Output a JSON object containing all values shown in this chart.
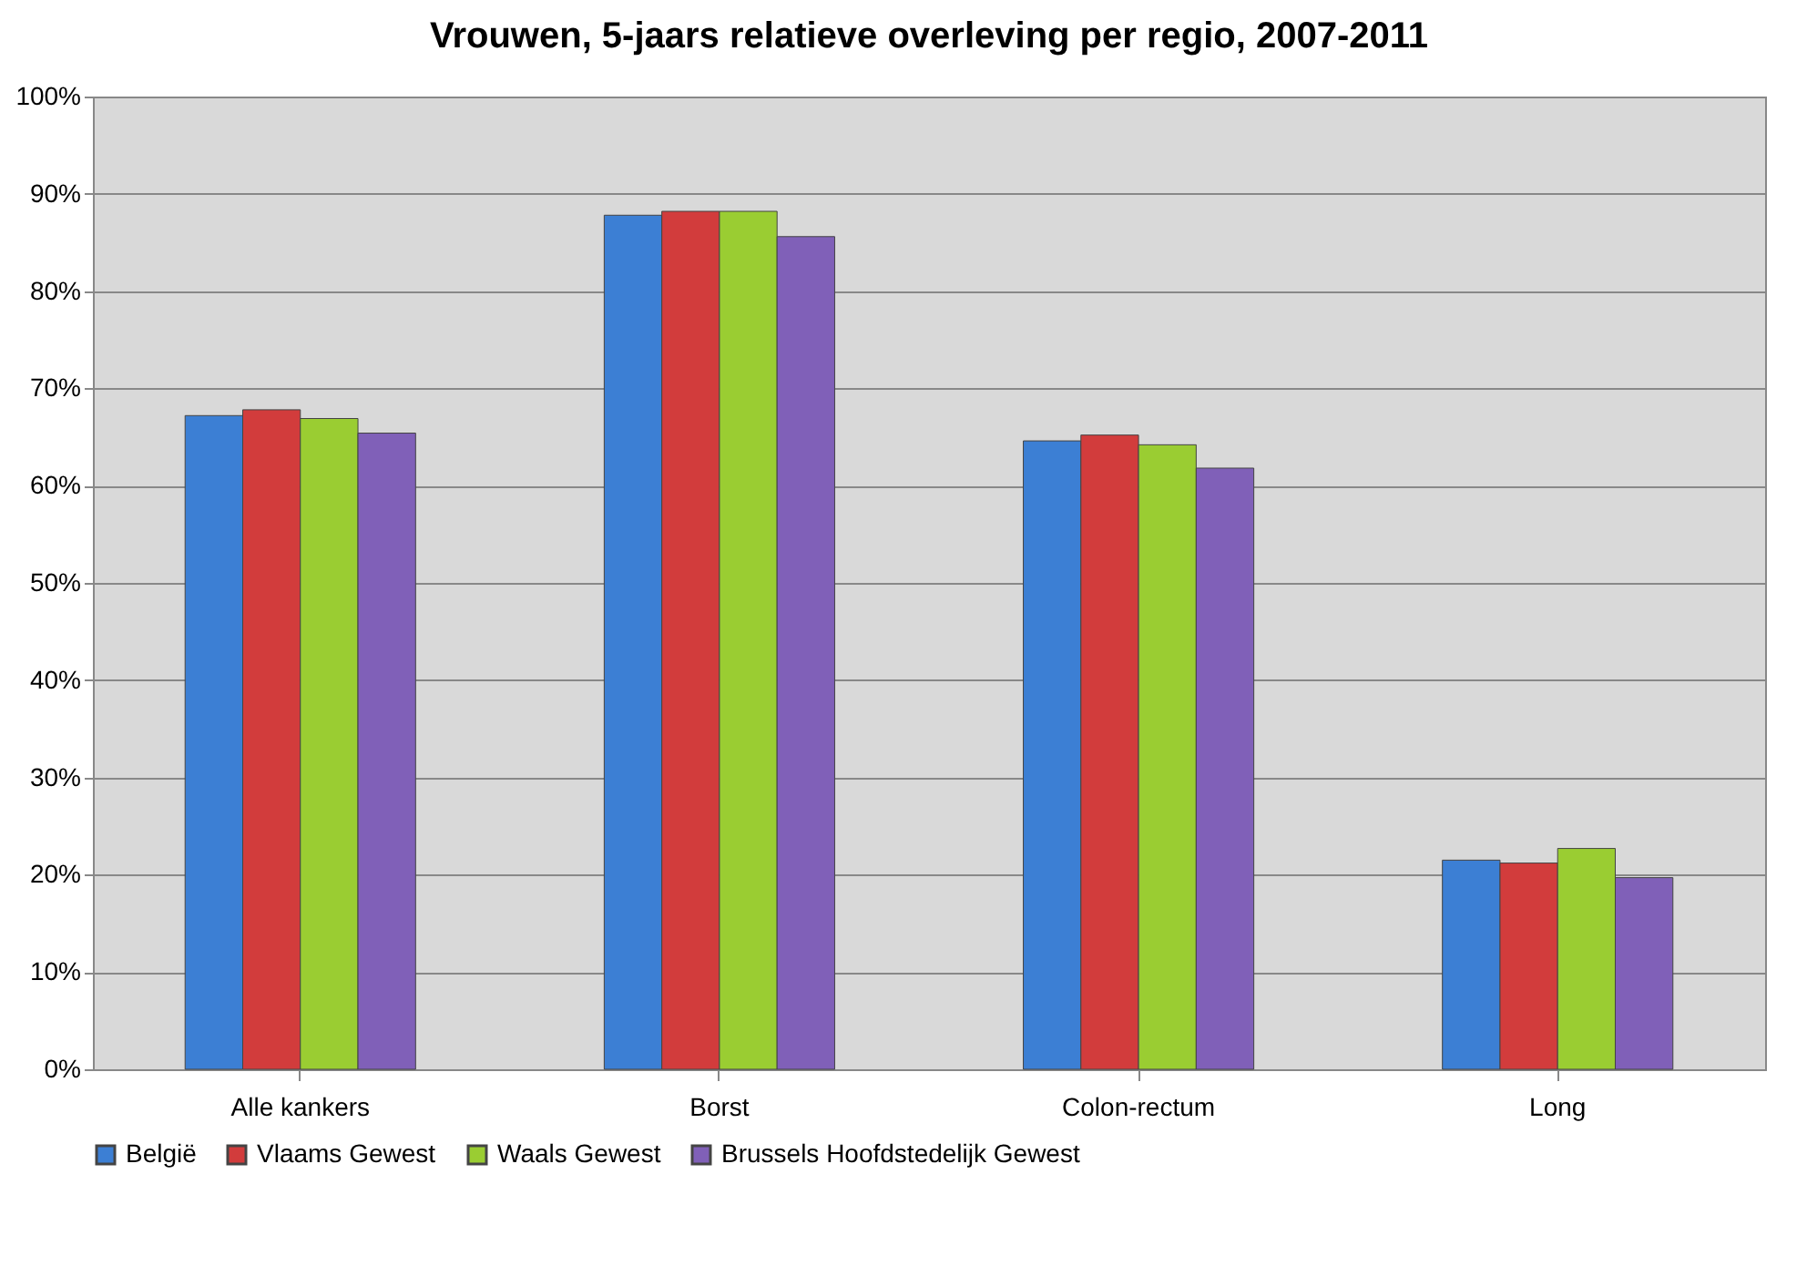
{
  "chart_data": {
    "type": "bar",
    "title": "Vrouwen, 5-jaars relatieve overleving per regio, 2007-2011",
    "categories": [
      "Alle kankers",
      "Borst",
      "Colon-rectum",
      "Long"
    ],
    "series": [
      {
        "name": "België",
        "color": "#3c7fd4",
        "values": [
          67.2,
          87.8,
          64.6,
          21.5
        ]
      },
      {
        "name": "Vlaams Gewest",
        "color": "#d23c3c",
        "values": [
          67.8,
          88.2,
          65.2,
          21.2
        ]
      },
      {
        "name": "Waals Gewest",
        "color": "#9acd32",
        "values": [
          66.9,
          88.2,
          64.2,
          22.7
        ]
      },
      {
        "name": "Brussels Hoofdstedelijk Gewest",
        "color": "#8060b8",
        "values": [
          65.4,
          85.6,
          61.8,
          19.7
        ]
      }
    ],
    "ylim": [
      0,
      100
    ],
    "yticks": [
      {
        "value": 0,
        "label": "0%"
      },
      {
        "value": 10,
        "label": "10%"
      },
      {
        "value": 20,
        "label": "20%"
      },
      {
        "value": 30,
        "label": "30%"
      },
      {
        "value": 40,
        "label": "40%"
      },
      {
        "value": 50,
        "label": "50%"
      },
      {
        "value": 60,
        "label": "60%"
      },
      {
        "value": 70,
        "label": "70%"
      },
      {
        "value": 80,
        "label": "80%"
      },
      {
        "value": 90,
        "label": "90%"
      },
      {
        "value": 100,
        "label": "100%"
      }
    ],
    "grid": "y",
    "legend": "bottom"
  }
}
